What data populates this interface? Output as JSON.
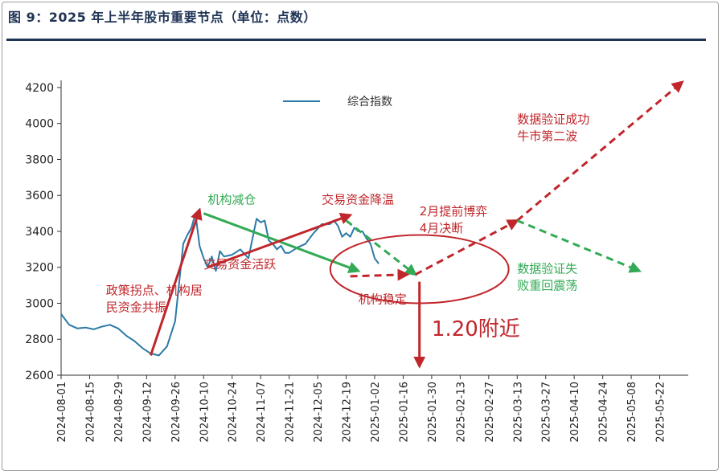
{
  "figure": {
    "title": "图 9：2025 年上半年股市重要节点（单位：点数）"
  },
  "colors": {
    "index_line": "#2b7aa6",
    "red": "#c0262b",
    "green": "#33aa55",
    "title": "#1f3355",
    "axis": "#333333"
  },
  "chart_data": {
    "type": "line",
    "legend": {
      "label": "综合指数",
      "position": "top-center"
    },
    "yticks": [
      2600,
      2800,
      3000,
      3200,
      3400,
      3600,
      3800,
      4000,
      4200
    ],
    "ylim": [
      2600,
      4240
    ],
    "xlim": [
      "2024-08-01",
      "2025-06-05"
    ],
    "xticks": [
      "2024-08-01",
      "2024-08-15",
      "2024-08-29",
      "2024-09-12",
      "2024-09-26",
      "2024-10-10",
      "2024-10-24",
      "2024-11-07",
      "2024-11-21",
      "2024-12-05",
      "2024-12-19",
      "2025-01-02",
      "2025-01-16",
      "2025-01-30",
      "2025-02-13",
      "2025-02-27",
      "2025-03-13",
      "2025-03-27",
      "2025-04-10",
      "2025-04-24",
      "2025-05-08",
      "2025-05-22"
    ],
    "series": [
      {
        "name": "综合指数",
        "x": [
          "2024-08-01",
          "2024-08-05",
          "2024-08-09",
          "2024-08-13",
          "2024-08-17",
          "2024-08-21",
          "2024-08-25",
          "2024-08-29",
          "2024-09-02",
          "2024-09-06",
          "2024-09-10",
          "2024-09-14",
          "2024-09-18",
          "2024-09-22",
          "2024-09-26",
          "2024-09-30",
          "2024-10-02",
          "2024-10-04",
          "2024-10-06",
          "2024-10-08",
          "2024-10-10",
          "2024-10-12",
          "2024-10-14",
          "2024-10-16",
          "2024-10-18",
          "2024-10-20",
          "2024-10-24",
          "2024-10-28",
          "2024-11-01",
          "2024-11-05",
          "2024-11-07",
          "2024-11-09",
          "2024-11-11",
          "2024-11-13",
          "2024-11-15",
          "2024-11-17",
          "2024-11-19",
          "2024-11-21",
          "2024-11-25",
          "2024-11-29",
          "2024-12-03",
          "2024-12-07",
          "2024-12-11",
          "2024-12-13",
          "2024-12-15",
          "2024-12-17",
          "2024-12-19",
          "2024-12-21",
          "2024-12-23",
          "2024-12-25",
          "2024-12-27",
          "2024-12-29",
          "2024-12-31",
          "2025-01-02",
          "2025-01-04"
        ],
        "y": [
          2940,
          2880,
          2860,
          2865,
          2855,
          2870,
          2880,
          2860,
          2820,
          2790,
          2750,
          2720,
          2710,
          2760,
          2900,
          3330,
          3380,
          3420,
          3500,
          3320,
          3250,
          3200,
          3260,
          3180,
          3290,
          3260,
          3270,
          3300,
          3250,
          3470,
          3450,
          3460,
          3350,
          3330,
          3300,
          3320,
          3280,
          3280,
          3310,
          3330,
          3390,
          3440,
          3440,
          3460,
          3430,
          3370,
          3390,
          3370,
          3420,
          3400,
          3400,
          3360,
          3330,
          3250,
          3220
        ]
      }
    ],
    "annotations": [
      {
        "color": "red",
        "text": [
          "政策拐点、机构居",
          "民资金共振"
        ],
        "x": "2024-08-23",
        "y": 3050
      },
      {
        "color": "green",
        "text": [
          "机构减仓"
        ],
        "x": "2024-10-12",
        "y": 3555
      },
      {
        "color": "red",
        "text": [
          "交易资金降温"
        ],
        "x": "2024-12-07",
        "y": 3555
      },
      {
        "color": "red",
        "text": [
          "交易资金活跃"
        ],
        "x": "2024-10-10",
        "y": 3195
      },
      {
        "color": "red",
        "text": [
          "机构稳定"
        ],
        "x": "2024-12-25",
        "y": 3000
      },
      {
        "color": "red",
        "text": [
          "2月提前博弈",
          "4月决断"
        ],
        "x": "2025-01-24",
        "y": 3490
      },
      {
        "color": "red",
        "text": [
          "数据验证成功",
          "牛市第二波"
        ],
        "x": "2025-03-13",
        "y": 4000
      },
      {
        "color": "green",
        "text": [
          "数据验证失",
          "败重回震荡"
        ],
        "x": "2025-03-13",
        "y": 3170
      },
      {
        "color": "red",
        "text": [
          "1.20附近"
        ],
        "x": "2025-01-30",
        "y": 2820,
        "emphasis": true
      }
    ],
    "arrows": [
      {
        "color": "red",
        "dashed": false,
        "from": {
          "x": "2024-09-14",
          "y": 2710
        },
        "to": {
          "x": "2024-10-08",
          "y": 3520
        }
      },
      {
        "color": "green",
        "dashed": false,
        "from": {
          "x": "2024-10-10",
          "y": 3500
        },
        "to": {
          "x": "2024-12-25",
          "y": 3180
        }
      },
      {
        "color": "red",
        "dashed": false,
        "from": {
          "x": "2024-10-12",
          "y": 3200
        },
        "to": {
          "x": "2024-12-21",
          "y": 3490
        }
      },
      {
        "color": "green",
        "dashed": true,
        "from": {
          "x": "2024-12-19",
          "y": 3460
        },
        "to": {
          "x": "2025-01-22",
          "y": 3160
        }
      },
      {
        "color": "red",
        "dashed": true,
        "from": {
          "x": "2024-12-21",
          "y": 3150
        },
        "to": {
          "x": "2025-01-18",
          "y": 3160
        }
      },
      {
        "color": "red",
        "dashed": true,
        "from": {
          "x": "2025-01-22",
          "y": 3160
        },
        "to": {
          "x": "2025-03-13",
          "y": 3460
        }
      },
      {
        "color": "red",
        "dashed": true,
        "from": {
          "x": "2025-03-13",
          "y": 3460
        },
        "to": {
          "x": "2025-06-02",
          "y": 4230
        }
      },
      {
        "color": "green",
        "dashed": true,
        "from": {
          "x": "2025-03-13",
          "y": 3460
        },
        "to": {
          "x": "2025-05-12",
          "y": 3180
        }
      },
      {
        "color": "red",
        "dashed": false,
        "from": {
          "x": "2025-01-24",
          "y": 3120
        },
        "to": {
          "x": "2025-01-24",
          "y": 2650
        }
      }
    ],
    "circle": {
      "color": "red",
      "cx": "2025-01-24",
      "cy": 3190,
      "rx_days": 12,
      "ry_value": 190
    }
  }
}
